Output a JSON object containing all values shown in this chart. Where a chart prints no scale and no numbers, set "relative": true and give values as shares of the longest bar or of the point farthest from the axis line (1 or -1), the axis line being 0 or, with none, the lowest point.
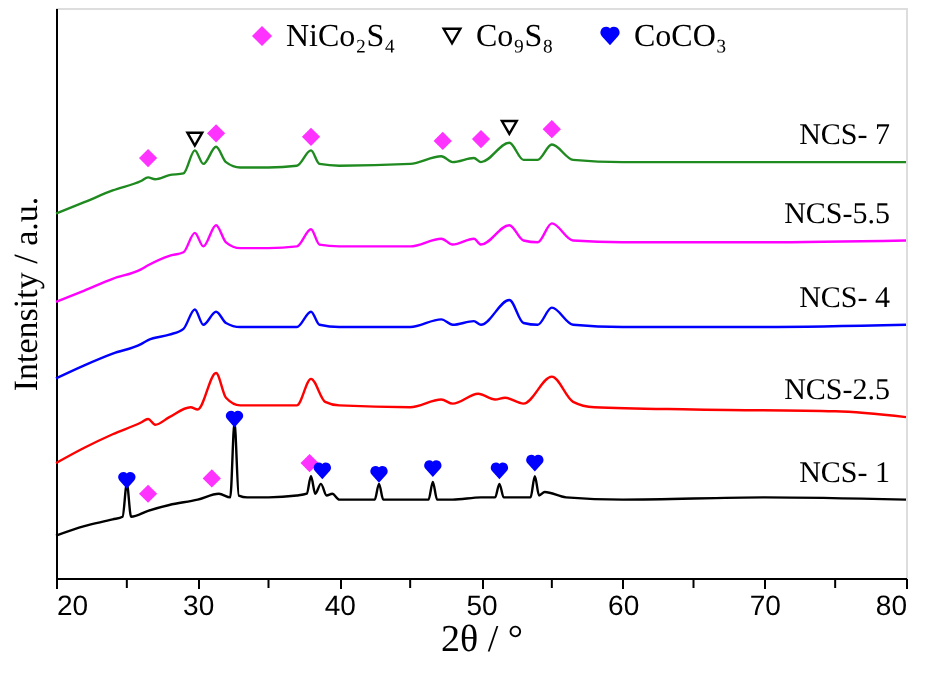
{
  "chart_data": {
    "type": "line",
    "relative": true,
    "xlabel": "2θ / °",
    "ylabel": "Intensity / a.u.",
    "xlim": [
      20,
      80
    ],
    "xticks": [
      20,
      {
        "value": 25,
        "label": null
      },
      30,
      {
        "value": 35,
        "label": null
      },
      40,
      {
        "value": 45,
        "label": null
      },
      50,
      {
        "value": 55,
        "label": null
      },
      60,
      {
        "value": 65,
        "label": null
      },
      70,
      {
        "value": 75,
        "label": null
      },
      80
    ],
    "grid": false,
    "legend": "top",
    "line_style": "solid",
    "series": [
      {
        "name": "NCS- 7",
        "color": "#1f8a1f",
        "x": [
          20,
          22,
          24,
          26,
          26.5,
          27,
          28,
          29,
          29.8,
          30.4,
          31.3,
          32,
          33,
          35,
          37,
          38,
          38.6,
          40,
          45,
          47.2,
          48,
          49.5,
          50,
          52,
          53,
          54,
          55,
          56.5,
          60,
          65,
          70,
          75,
          80
        ],
        "values": [
          0.809,
          0.834,
          0.86,
          0.881,
          0.889,
          0.885,
          0.894,
          0.898,
          0.949,
          0.919,
          0.957,
          0.923,
          0.911,
          0.911,
          0.915,
          0.949,
          0.919,
          0.915,
          0.919,
          0.936,
          0.923,
          0.932,
          0.923,
          0.966,
          0.928,
          0.928,
          0.962,
          0.928,
          0.923,
          0.923,
          0.923,
          0.923,
          0.923
        ]
      },
      {
        "name": "NCS-5.5",
        "color": "#ff00ff",
        "x": [
          20,
          22,
          24,
          26,
          26.5,
          28,
          29,
          29.8,
          30.4,
          31.3,
          32,
          33,
          35,
          37,
          38,
          38.6,
          40,
          45,
          47.2,
          48,
          49.5,
          50,
          52,
          53,
          54,
          55,
          56.5,
          60,
          70,
          80
        ],
        "values": [
          0.613,
          0.638,
          0.664,
          0.685,
          0.694,
          0.715,
          0.723,
          0.766,
          0.736,
          0.783,
          0.745,
          0.732,
          0.732,
          0.736,
          0.774,
          0.74,
          0.736,
          0.736,
          0.753,
          0.74,
          0.753,
          0.74,
          0.783,
          0.749,
          0.745,
          0.787,
          0.749,
          0.745,
          0.745,
          0.749
        ]
      },
      {
        "name": "NCS- 4",
        "color": "#0000ff",
        "x": [
          20,
          22,
          24,
          26,
          26.5,
          28,
          29,
          29.8,
          30.4,
          31.3,
          32,
          33,
          37,
          38,
          38.6,
          40,
          45,
          47.2,
          48,
          49.5,
          50,
          52,
          53,
          54,
          55,
          56.5,
          60,
          70,
          80
        ],
        "values": [
          0.443,
          0.472,
          0.498,
          0.519,
          0.528,
          0.54,
          0.553,
          0.596,
          0.562,
          0.591,
          0.566,
          0.557,
          0.557,
          0.591,
          0.562,
          0.557,
          0.557,
          0.574,
          0.562,
          0.57,
          0.562,
          0.617,
          0.566,
          0.562,
          0.6,
          0.562,
          0.557,
          0.557,
          0.562
        ]
      },
      {
        "name": "NCS-2.5",
        "color": "#ff0000",
        "x": [
          20,
          22,
          24,
          26,
          26.5,
          27,
          28,
          29.5,
          30,
          31.3,
          32,
          33,
          37,
          38,
          39,
          40,
          45,
          47.2,
          48,
          49.8,
          51,
          51.7,
          53,
          55,
          56.5,
          58,
          65,
          75,
          80
        ],
        "values": [
          0.255,
          0.289,
          0.319,
          0.345,
          0.353,
          0.34,
          0.357,
          0.379,
          0.374,
          0.455,
          0.4,
          0.383,
          0.383,
          0.442,
          0.391,
          0.383,
          0.379,
          0.396,
          0.387,
          0.409,
          0.396,
          0.4,
          0.387,
          0.447,
          0.391,
          0.379,
          0.374,
          0.37,
          0.357
        ]
      },
      {
        "name": "NCS- 1",
        "color": "#000000",
        "x": [
          20,
          22,
          24,
          24.7,
          25,
          25.3,
          26.5,
          28,
          30,
          31.5,
          32.3,
          32.6,
          32.9,
          33.5,
          35,
          37,
          37.7,
          38,
          38.3,
          38.7,
          39.1,
          39.5,
          40,
          42.5,
          42.8,
          43.1,
          44,
          46.3,
          46.6,
          46.9,
          48,
          50,
          51,
          51.3,
          51.6,
          52,
          53.5,
          53.8,
          54.1,
          54.5,
          56,
          60,
          70,
          80
        ],
        "values": [
          0.094,
          0.115,
          0.13,
          0.136,
          0.209,
          0.136,
          0.149,
          0.162,
          0.174,
          0.187,
          0.179,
          0.345,
          0.183,
          0.179,
          0.179,
          0.183,
          0.187,
          0.226,
          0.187,
          0.209,
          0.183,
          0.187,
          0.174,
          0.174,
          0.209,
          0.174,
          0.174,
          0.174,
          0.213,
          0.174,
          0.174,
          0.179,
          0.179,
          0.209,
          0.179,
          0.179,
          0.179,
          0.226,
          0.183,
          0.191,
          0.179,
          0.174,
          0.179,
          0.174
        ]
      },
      {
        "name": "NiCo₂S₄",
        "type": "scatter",
        "marker": "diamond",
        "color": "#ff33ff",
        "x": [
          26.5,
          31.3,
          38,
          47.3,
          50,
          55,
          26.5,
          31,
          37.9
        ],
        "values": [
          0.932,
          0.987,
          0.979,
          0.97,
          0.974,
          0.996,
          0.187,
          0.221,
          0.255
        ]
      },
      {
        "name": "Co₉S₈",
        "type": "scatter",
        "marker": "triangle",
        "color": "#000000",
        "x": [
          29.8,
          52
        ],
        "values": [
          0.974,
          1.0
        ]
      },
      {
        "name": "CoCO₃",
        "type": "scatter",
        "color": "#0000ff",
        "x": [
          25,
          32.6,
          38.8,
          42.8,
          46.6,
          51.3,
          53.8
        ],
        "values": [
          0.217,
          0.353,
          0.238,
          0.23,
          0.243,
          0.238,
          0.255
        ]
      }
    ]
  }
}
